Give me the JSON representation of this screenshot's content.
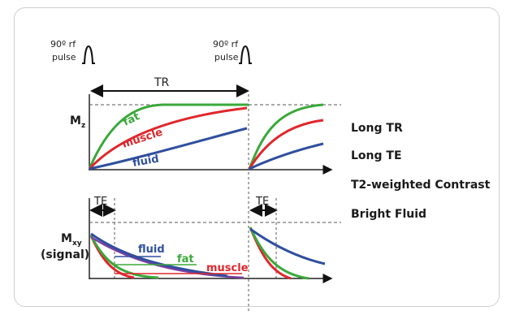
{
  "pulse1": {
    "title": "90º rf",
    "sub": "pulse"
  },
  "pulse2": {
    "title": "90º rf",
    "sub": "pulse"
  },
  "tr_label": "TR",
  "mz": {
    "letter": "M",
    "sub": "z"
  },
  "mxy": {
    "letter": "M",
    "sub": "xy",
    "signal": "(signal)"
  },
  "te1": "TE",
  "te2": "TE",
  "curves_top": {
    "fat": "fat",
    "muscle": "muscle",
    "fluid": "fluid"
  },
  "curves_bottom": {
    "fluid": "fluid",
    "fat": "fat",
    "muscle": "muscle"
  },
  "right_labels": [
    "Long TR",
    "Long TE",
    "T2-weighted Contrast",
    "Bright Fluid"
  ],
  "colors": {
    "fat": "#3aa83a",
    "muscle": "#e0262b",
    "fluid": "#2f4f9e",
    "axis": "#222222",
    "dash": "#555555"
  }
}
